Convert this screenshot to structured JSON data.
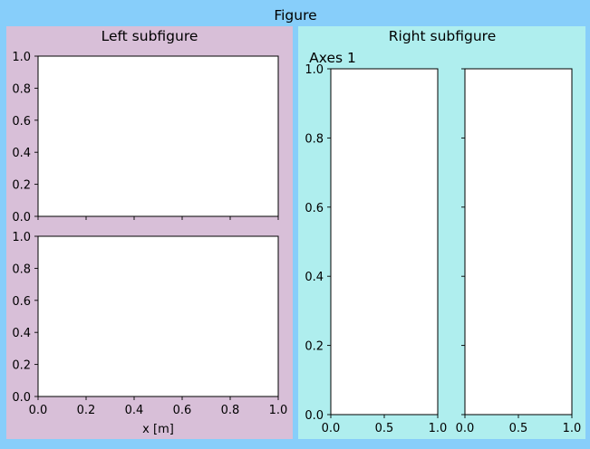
{
  "figure": {
    "suptitle": "Figure",
    "background": "#87cefa"
  },
  "left_subfigure": {
    "title": "Left subfigure",
    "background": "#d8bfd8"
  },
  "right_subfigure": {
    "title": "Right subfigure",
    "background": "#afeeee"
  },
  "chart_data": [
    {
      "type": "line",
      "panel": "left-top",
      "series": [],
      "xlim": [
        0,
        1
      ],
      "ylim": [
        0,
        1
      ],
      "xticks": [
        0.0,
        0.2,
        0.4,
        0.6,
        0.8,
        1.0
      ],
      "yticks": [
        0.0,
        0.2,
        0.4,
        0.6,
        0.8,
        1.0
      ],
      "ytick_labels": [
        "0.0",
        "0.2",
        "0.4",
        "0.6",
        "0.8",
        "1.0"
      ],
      "xtick_labels_visible": false,
      "title": "",
      "xlabel": "",
      "ylabel": ""
    },
    {
      "type": "line",
      "panel": "left-bottom",
      "series": [],
      "xlim": [
        0,
        1
      ],
      "ylim": [
        0,
        1
      ],
      "xticks": [
        0.0,
        0.2,
        0.4,
        0.6,
        0.8,
        1.0
      ],
      "yticks": [
        0.0,
        0.2,
        0.4,
        0.6,
        0.8,
        1.0
      ],
      "xtick_labels": [
        "0.0",
        "0.2",
        "0.4",
        "0.6",
        "0.8",
        "1.0"
      ],
      "ytick_labels": [
        "0.0",
        "0.2",
        "0.4",
        "0.6",
        "0.8",
        "1.0"
      ],
      "title": "",
      "xlabel": "x [m]",
      "ylabel": ""
    },
    {
      "type": "line",
      "panel": "right-1",
      "series": [],
      "xlim": [
        0,
        1
      ],
      "ylim": [
        0,
        1
      ],
      "xticks": [
        0.0,
        0.5,
        1.0
      ],
      "yticks": [
        0.0,
        0.2,
        0.4,
        0.6,
        0.8,
        1.0
      ],
      "xtick_labels": [
        "0.0",
        "0.5",
        "1.0"
      ],
      "ytick_labels": [
        "0.0",
        "0.2",
        "0.4",
        "0.6",
        "0.8",
        "1.0"
      ],
      "title": "Axes 1",
      "xlabel": "",
      "ylabel": ""
    },
    {
      "type": "line",
      "panel": "right-2",
      "series": [],
      "xlim": [
        0,
        1
      ],
      "ylim": [
        0,
        1
      ],
      "xticks": [
        0.0,
        0.5,
        1.0
      ],
      "yticks": [
        0.0,
        0.2,
        0.4,
        0.6,
        0.8,
        1.0
      ],
      "xtick_labels": [
        "0.0",
        "0.5",
        "1.0"
      ],
      "ytick_labels_visible": false,
      "title": "",
      "xlabel": "",
      "ylabel": ""
    }
  ]
}
